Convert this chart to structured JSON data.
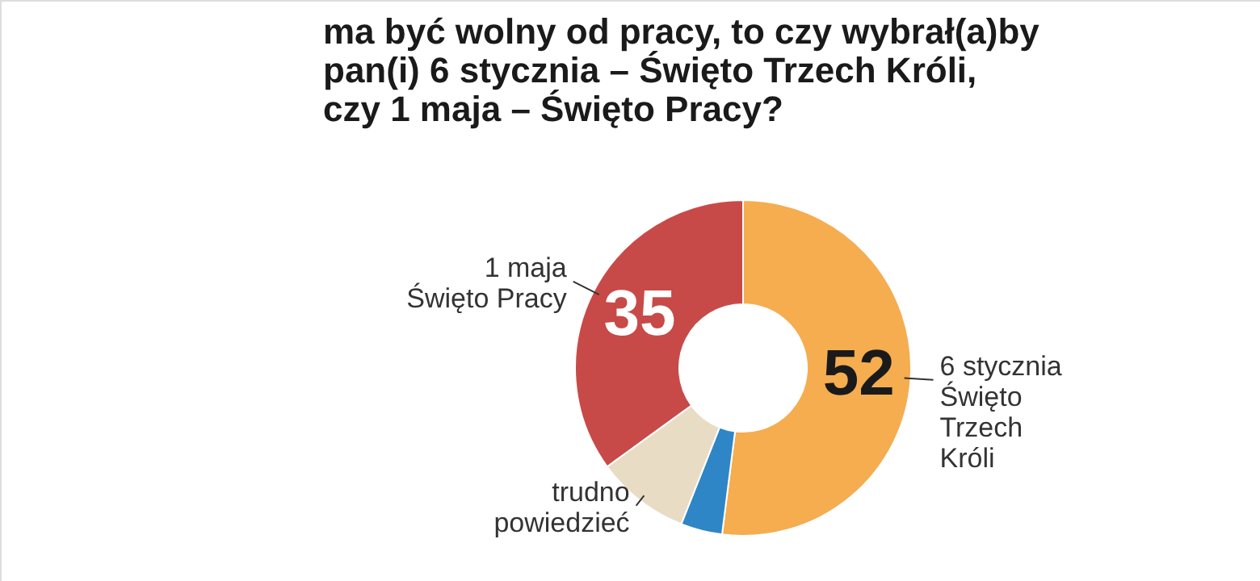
{
  "chart_data": {
    "type": "donut",
    "title": "ma być wolny od pracy, to czy wybrał(a)by\npan(i) 6 stycznia – Święto Trzech Króli,\nczy 1 maja – Święto Pracy?",
    "categories": [
      "6 stycznia\nŚwięto\nTrzech\nKróli",
      null,
      "trudno\npowiedzieć",
      "1 maja\nŚwięto Pracy"
    ],
    "values": [
      52,
      4,
      9,
      35
    ],
    "colors": [
      "#f5ad4f",
      "#2f86c6",
      "#e8dcc4",
      "#c84a48"
    ],
    "value_labels": [
      "52",
      null,
      null,
      "35"
    ]
  }
}
